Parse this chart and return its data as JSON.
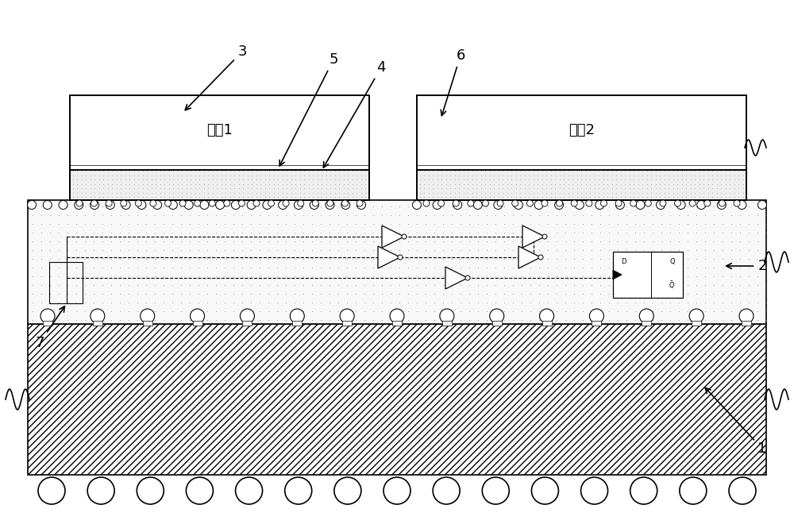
{
  "bg_color": "#ffffff",
  "label1": "裸片1",
  "label2": "裸片2",
  "numbers": [
    "1",
    "2",
    "3",
    "4",
    "5",
    "6",
    "7"
  ]
}
